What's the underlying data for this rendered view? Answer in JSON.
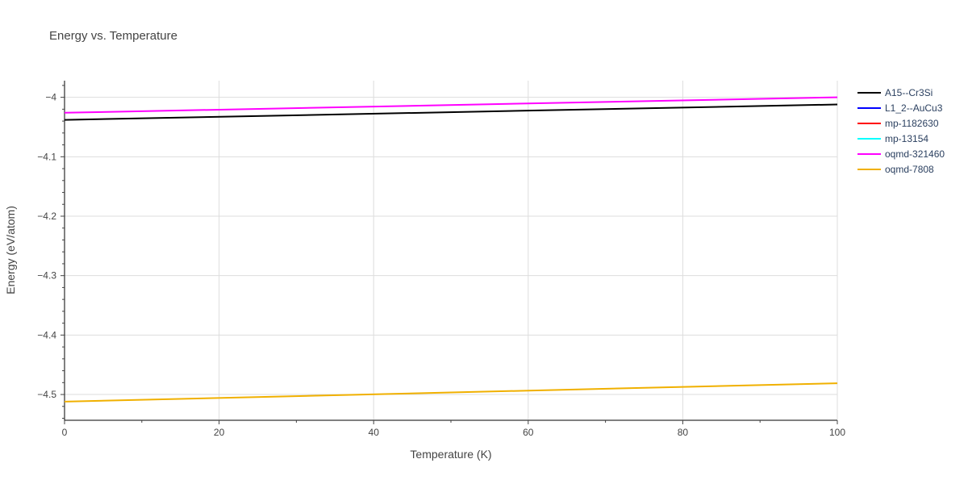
{
  "chart_data": {
    "type": "line",
    "title": "Energy vs. Temperature",
    "xlabel": "Temperature (K)",
    "ylabel": "Energy (eV/atom)",
    "xlim": [
      0,
      100
    ],
    "ylim": [
      -4.542,
      -3.972
    ],
    "x_ticks": [
      0,
      20,
      40,
      60,
      80,
      100
    ],
    "y_ticks": [
      -4.5,
      -4.4,
      -4.3,
      -4.2,
      -4.1,
      -4
    ],
    "y_tick_labels": [
      "−4.5",
      "−4.4",
      "−4.3",
      "−4.2",
      "−4.1",
      "−4"
    ],
    "grid": true,
    "legend_position": "top-right",
    "series": [
      {
        "name": "A15--Cr3Si",
        "color": "#000000",
        "x": [
          0,
          100
        ],
        "y": [
          -4.038,
          -4.012
        ]
      },
      {
        "name": "L1_2--AuCu3",
        "color": "#0000ff",
        "x": [],
        "y": []
      },
      {
        "name": "mp-1182630",
        "color": "#ff0000",
        "x": [],
        "y": []
      },
      {
        "name": "mp-13154",
        "color": "#00ffff",
        "x": [],
        "y": []
      },
      {
        "name": "oqmd-321460",
        "color": "#ff00ff",
        "x": [
          0,
          100
        ],
        "y": [
          -4.026,
          -4.0
        ]
      },
      {
        "name": "oqmd-7808",
        "color": "#f0b000",
        "x": [
          0,
          100
        ],
        "y": [
          -4.512,
          -4.481
        ]
      }
    ]
  }
}
